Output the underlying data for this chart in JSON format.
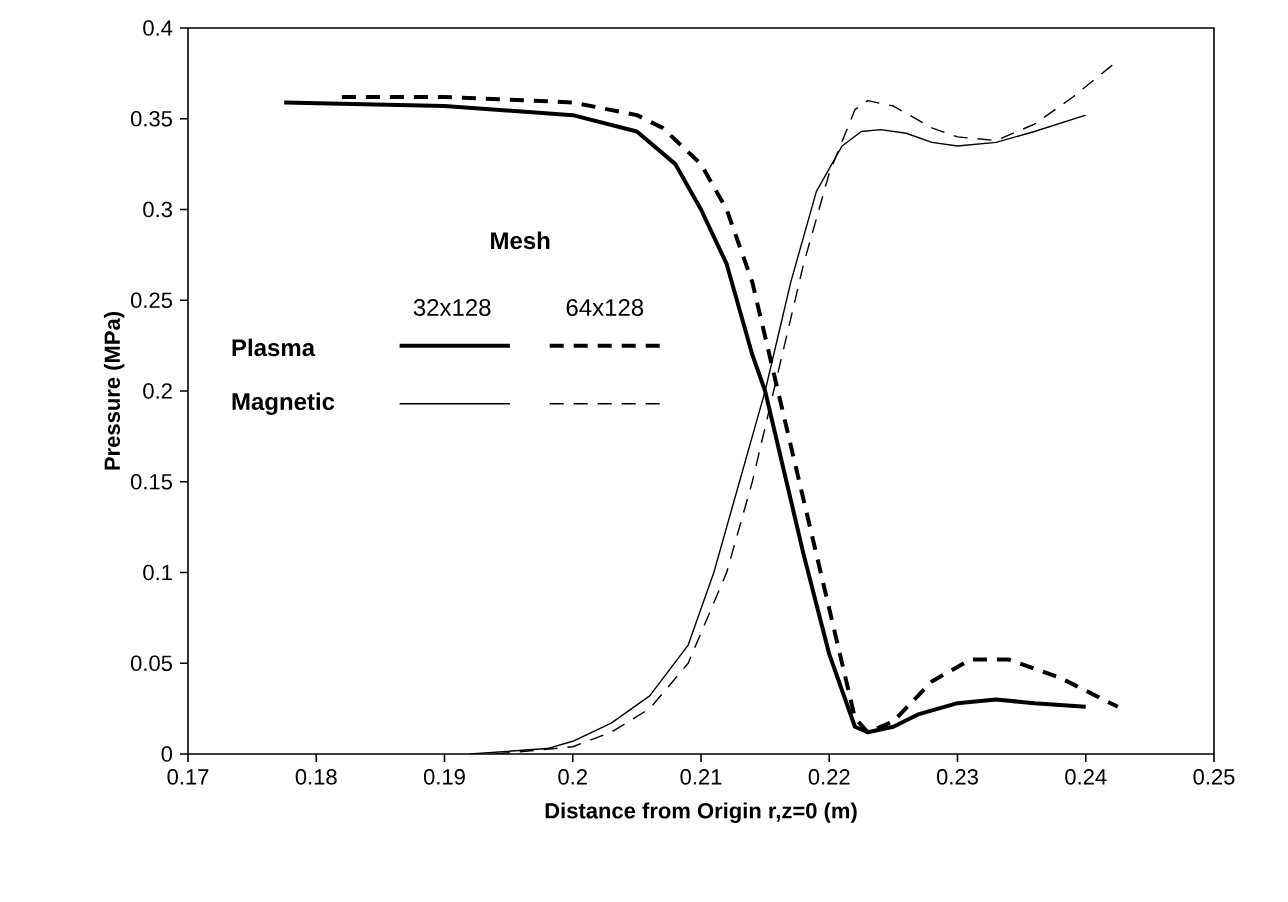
{
  "chart_data": {
    "type": "line",
    "xlabel": "Distance from Origin r,z=0 (m)",
    "ylabel": "Pressure (MPa)",
    "xlim": [
      0.17,
      0.25
    ],
    "xticks": [
      0.17,
      0.18,
      0.19,
      0.2,
      0.21,
      0.22,
      0.23,
      0.24,
      0.25
    ],
    "ylim": [
      0,
      0.4
    ],
    "yticks": [
      0,
      0.05,
      0.1,
      0.15,
      0.2,
      0.25,
      0.3,
      0.35,
      0.4
    ],
    "grid": false,
    "marker": "none",
    "annotations": [
      "Mesh",
      "32x128",
      "64x128",
      "Plasma",
      "Magnetic"
    ],
    "series": [
      {
        "color": "#000000",
        "line_style": "solid",
        "x": [
          0.1775,
          0.19,
          0.2,
          0.205,
          0.208,
          0.21,
          0.212,
          0.214,
          0.215,
          0.216,
          0.218,
          0.22,
          0.222,
          0.223,
          0.225,
          0.227,
          0.23,
          0.233,
          0.236,
          0.24
        ],
        "values": [
          0.359,
          0.357,
          0.352,
          0.343,
          0.325,
          0.3,
          0.27,
          0.22,
          0.2,
          0.17,
          0.11,
          0.055,
          0.015,
          0.012,
          0.015,
          0.022,
          0.028,
          0.03,
          0.028,
          0.026
        ]
      },
      {
        "color": "#000000",
        "line_style": "dashed",
        "x": [
          0.182,
          0.19,
          0.2,
          0.205,
          0.207,
          0.21,
          0.212,
          0.214,
          0.216,
          0.218,
          0.22,
          0.222,
          0.223,
          0.225,
          0.228,
          0.231,
          0.234,
          0.238,
          0.2425
        ],
        "values": [
          0.362,
          0.362,
          0.359,
          0.352,
          0.345,
          0.325,
          0.3,
          0.26,
          0.2,
          0.14,
          0.08,
          0.02,
          0.012,
          0.018,
          0.04,
          0.052,
          0.052,
          0.042,
          0.026
        ]
      },
      {
        "color": "#000000",
        "line_style": "solid",
        "x": [
          0.192,
          0.198,
          0.2,
          0.203,
          0.206,
          0.209,
          0.211,
          0.213,
          0.215,
          0.217,
          0.219,
          0.221,
          0.2225,
          0.224,
          0.226,
          0.228,
          0.23,
          0.233,
          0.236,
          0.24
        ],
        "values": [
          0,
          0.003,
          0.007,
          0.017,
          0.032,
          0.06,
          0.1,
          0.15,
          0.2,
          0.26,
          0.31,
          0.335,
          0.343,
          0.344,
          0.342,
          0.337,
          0.335,
          0.337,
          0.343,
          0.352
        ]
      },
      {
        "color": "#000000",
        "line_style": "dashed",
        "x": [
          0.194,
          0.2,
          0.203,
          0.206,
          0.209,
          0.212,
          0.214,
          0.216,
          0.218,
          0.22,
          0.222,
          0.223,
          0.225,
          0.228,
          0.23,
          0.233,
          0.236,
          0.239,
          0.2425
        ],
        "values": [
          0,
          0.004,
          0.012,
          0.025,
          0.05,
          0.1,
          0.15,
          0.21,
          0.27,
          0.32,
          0.355,
          0.36,
          0.357,
          0.345,
          0.34,
          0.338,
          0.347,
          0.362,
          0.382
        ]
      }
    ]
  }
}
